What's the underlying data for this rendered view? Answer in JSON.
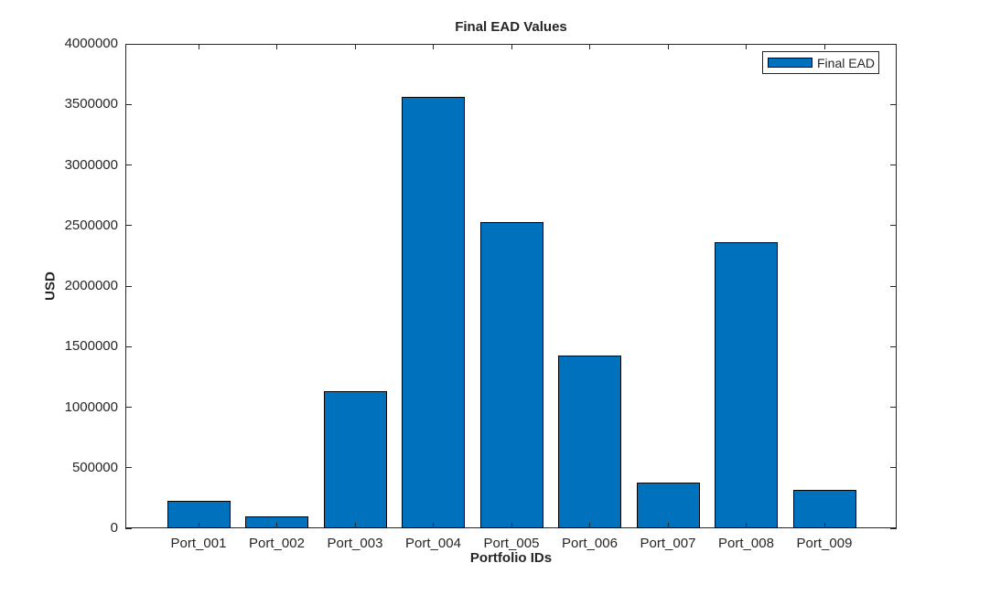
{
  "chart_data": {
    "type": "bar",
    "title": "Final EAD Values",
    "xlabel": "Portfolio IDs",
    "ylabel": "USD",
    "categories": [
      "Port_001",
      "Port_002",
      "Port_003",
      "Port_004",
      "Port_005",
      "Port_006",
      "Port_007",
      "Port_008",
      "Port_009"
    ],
    "series": [
      {
        "name": "Final EAD",
        "values": [
          230000,
          100000,
          1130000,
          3560000,
          2525000,
          1425000,
          375000,
          2360000,
          315000
        ]
      }
    ],
    "ylim": [
      0,
      4000000
    ],
    "ytick_interval": 500000,
    "ytick_labels": [
      "0",
      "500000",
      "1000000",
      "1500000",
      "2000000",
      "2500000",
      "3000000",
      "3500000",
      "4000000"
    ],
    "grid": false,
    "legend": {
      "position": "northeast",
      "entries": [
        "Final EAD"
      ]
    },
    "colors": {
      "bar_fill": "#0072BD",
      "bar_edge": "#000000",
      "axis": "#262626",
      "background": "#ffffff"
    }
  }
}
